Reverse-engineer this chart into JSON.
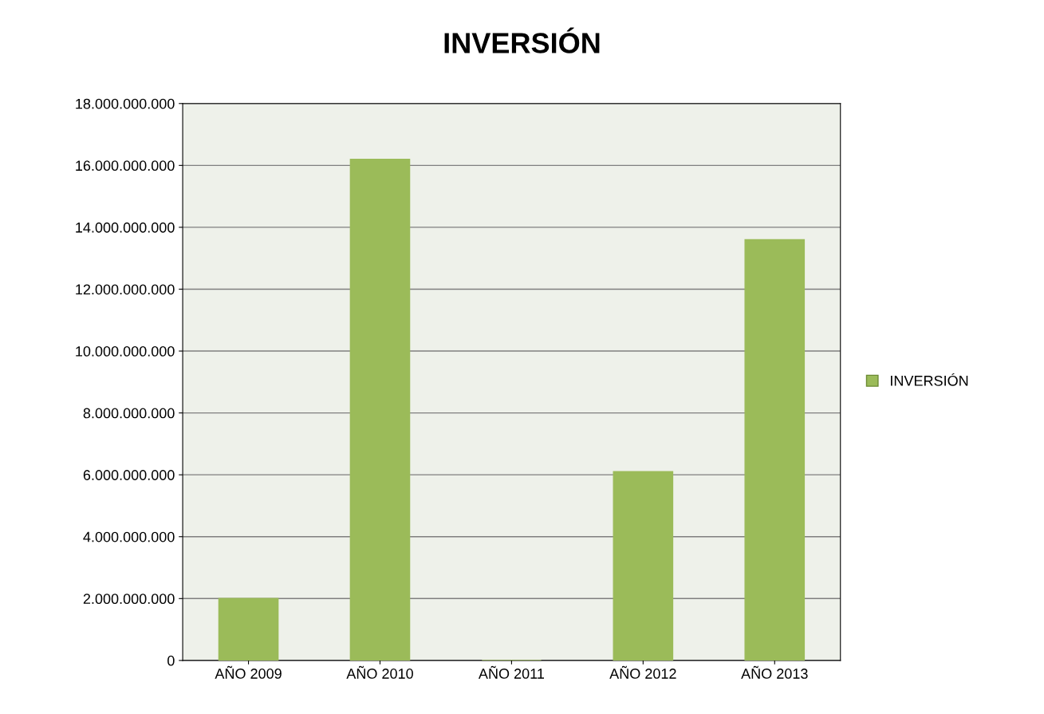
{
  "chart_data": {
    "type": "bar",
    "title": "INVERSIÓN",
    "categories": [
      "AÑO 2009",
      "AÑO 2010",
      "AÑO 2011",
      "AÑO 2012",
      "AÑO 2013"
    ],
    "series": [
      {
        "name": "INVERSIÓN",
        "color": "#9bbb59",
        "values": [
          2000000000,
          16200000000,
          0,
          6100000000,
          13600000000
        ]
      }
    ],
    "ylim": [
      0,
      18000000000
    ],
    "yticks": [
      {
        "value": 0,
        "label": "0"
      },
      {
        "value": 2000000000,
        "label": "2.000.000.000"
      },
      {
        "value": 4000000000,
        "label": "4.000.000.000"
      },
      {
        "value": 6000000000,
        "label": "6.000.000.000"
      },
      {
        "value": 8000000000,
        "label": "8.000.000.000"
      },
      {
        "value": 10000000000,
        "label": "10.000.000.000"
      },
      {
        "value": 12000000000,
        "label": "12.000.000.000"
      },
      {
        "value": 14000000000,
        "label": "14.000.000.000"
      },
      {
        "value": 16000000000,
        "label": "16.000.000.000"
      },
      {
        "value": 18000000000,
        "label": "18.000.000.000"
      }
    ],
    "grid": "y",
    "legend": "right"
  }
}
